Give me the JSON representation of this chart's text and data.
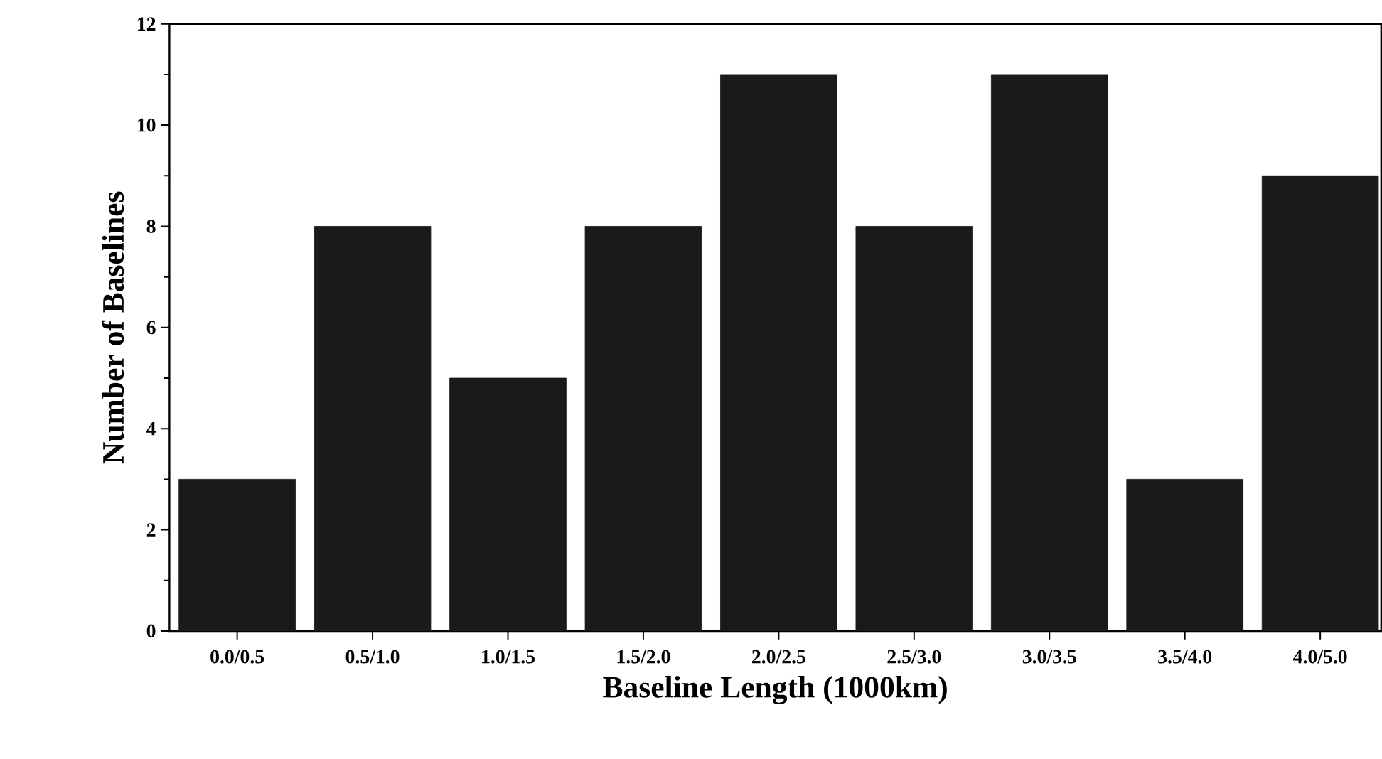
{
  "chart_data": {
    "type": "bar",
    "xlabel": "Baseline Length (1000km)",
    "ylabel": "Number of Baselines",
    "categories": [
      "0.0/0.5",
      "0.5/1.0",
      "1.0/1.5",
      "1.5/2.0",
      "2.0/2.5",
      "2.5/3.0",
      "3.0/3.5",
      "3.5/4.0",
      "4.0/5.0"
    ],
    "values": [
      3,
      8,
      5,
      8,
      11,
      8,
      11,
      3,
      9
    ],
    "color": "#1a1a1a",
    "ylim": [
      0,
      12
    ],
    "yticks": [
      0,
      2,
      4,
      6,
      8,
      10,
      12
    ]
  }
}
